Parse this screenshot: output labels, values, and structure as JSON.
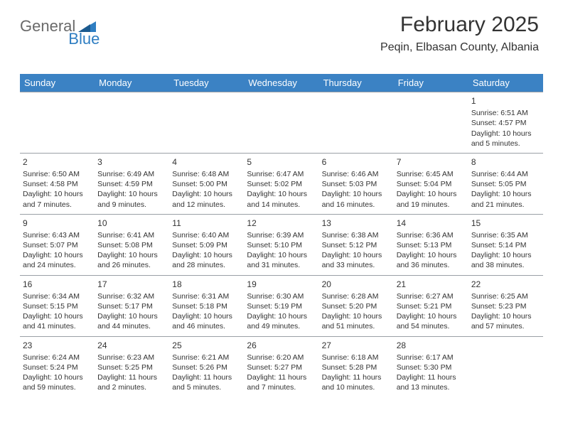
{
  "logo": {
    "word1": "General",
    "word2": "Blue"
  },
  "header": {
    "title": "February 2025",
    "subtitle": "Peqin, Elbasan County, Albania"
  },
  "colors": {
    "header_bg": "#3b82c4",
    "header_text": "#ffffff",
    "divider": "#9aa0a6",
    "logo_gray": "#6a6a6a",
    "logo_blue": "#2f7ec2",
    "text": "#333333",
    "background": "#ffffff"
  },
  "day_names": [
    "Sunday",
    "Monday",
    "Tuesday",
    "Wednesday",
    "Thursday",
    "Friday",
    "Saturday"
  ],
  "weeks": [
    [
      {
        "day": "",
        "sunrise": "",
        "sunset": "",
        "daylight": ""
      },
      {
        "day": "",
        "sunrise": "",
        "sunset": "",
        "daylight": ""
      },
      {
        "day": "",
        "sunrise": "",
        "sunset": "",
        "daylight": ""
      },
      {
        "day": "",
        "sunrise": "",
        "sunset": "",
        "daylight": ""
      },
      {
        "day": "",
        "sunrise": "",
        "sunset": "",
        "daylight": ""
      },
      {
        "day": "",
        "sunrise": "",
        "sunset": "",
        "daylight": ""
      },
      {
        "day": "1",
        "sunrise": "Sunrise: 6:51 AM",
        "sunset": "Sunset: 4:57 PM",
        "daylight": "Daylight: 10 hours and 5 minutes."
      }
    ],
    [
      {
        "day": "2",
        "sunrise": "Sunrise: 6:50 AM",
        "sunset": "Sunset: 4:58 PM",
        "daylight": "Daylight: 10 hours and 7 minutes."
      },
      {
        "day": "3",
        "sunrise": "Sunrise: 6:49 AM",
        "sunset": "Sunset: 4:59 PM",
        "daylight": "Daylight: 10 hours and 9 minutes."
      },
      {
        "day": "4",
        "sunrise": "Sunrise: 6:48 AM",
        "sunset": "Sunset: 5:00 PM",
        "daylight": "Daylight: 10 hours and 12 minutes."
      },
      {
        "day": "5",
        "sunrise": "Sunrise: 6:47 AM",
        "sunset": "Sunset: 5:02 PM",
        "daylight": "Daylight: 10 hours and 14 minutes."
      },
      {
        "day": "6",
        "sunrise": "Sunrise: 6:46 AM",
        "sunset": "Sunset: 5:03 PM",
        "daylight": "Daylight: 10 hours and 16 minutes."
      },
      {
        "day": "7",
        "sunrise": "Sunrise: 6:45 AM",
        "sunset": "Sunset: 5:04 PM",
        "daylight": "Daylight: 10 hours and 19 minutes."
      },
      {
        "day": "8",
        "sunrise": "Sunrise: 6:44 AM",
        "sunset": "Sunset: 5:05 PM",
        "daylight": "Daylight: 10 hours and 21 minutes."
      }
    ],
    [
      {
        "day": "9",
        "sunrise": "Sunrise: 6:43 AM",
        "sunset": "Sunset: 5:07 PM",
        "daylight": "Daylight: 10 hours and 24 minutes."
      },
      {
        "day": "10",
        "sunrise": "Sunrise: 6:41 AM",
        "sunset": "Sunset: 5:08 PM",
        "daylight": "Daylight: 10 hours and 26 minutes."
      },
      {
        "day": "11",
        "sunrise": "Sunrise: 6:40 AM",
        "sunset": "Sunset: 5:09 PM",
        "daylight": "Daylight: 10 hours and 28 minutes."
      },
      {
        "day": "12",
        "sunrise": "Sunrise: 6:39 AM",
        "sunset": "Sunset: 5:10 PM",
        "daylight": "Daylight: 10 hours and 31 minutes."
      },
      {
        "day": "13",
        "sunrise": "Sunrise: 6:38 AM",
        "sunset": "Sunset: 5:12 PM",
        "daylight": "Daylight: 10 hours and 33 minutes."
      },
      {
        "day": "14",
        "sunrise": "Sunrise: 6:36 AM",
        "sunset": "Sunset: 5:13 PM",
        "daylight": "Daylight: 10 hours and 36 minutes."
      },
      {
        "day": "15",
        "sunrise": "Sunrise: 6:35 AM",
        "sunset": "Sunset: 5:14 PM",
        "daylight": "Daylight: 10 hours and 38 minutes."
      }
    ],
    [
      {
        "day": "16",
        "sunrise": "Sunrise: 6:34 AM",
        "sunset": "Sunset: 5:15 PM",
        "daylight": "Daylight: 10 hours and 41 minutes."
      },
      {
        "day": "17",
        "sunrise": "Sunrise: 6:32 AM",
        "sunset": "Sunset: 5:17 PM",
        "daylight": "Daylight: 10 hours and 44 minutes."
      },
      {
        "day": "18",
        "sunrise": "Sunrise: 6:31 AM",
        "sunset": "Sunset: 5:18 PM",
        "daylight": "Daylight: 10 hours and 46 minutes."
      },
      {
        "day": "19",
        "sunrise": "Sunrise: 6:30 AM",
        "sunset": "Sunset: 5:19 PM",
        "daylight": "Daylight: 10 hours and 49 minutes."
      },
      {
        "day": "20",
        "sunrise": "Sunrise: 6:28 AM",
        "sunset": "Sunset: 5:20 PM",
        "daylight": "Daylight: 10 hours and 51 minutes."
      },
      {
        "day": "21",
        "sunrise": "Sunrise: 6:27 AM",
        "sunset": "Sunset: 5:21 PM",
        "daylight": "Daylight: 10 hours and 54 minutes."
      },
      {
        "day": "22",
        "sunrise": "Sunrise: 6:25 AM",
        "sunset": "Sunset: 5:23 PM",
        "daylight": "Daylight: 10 hours and 57 minutes."
      }
    ],
    [
      {
        "day": "23",
        "sunrise": "Sunrise: 6:24 AM",
        "sunset": "Sunset: 5:24 PM",
        "daylight": "Daylight: 10 hours and 59 minutes."
      },
      {
        "day": "24",
        "sunrise": "Sunrise: 6:23 AM",
        "sunset": "Sunset: 5:25 PM",
        "daylight": "Daylight: 11 hours and 2 minutes."
      },
      {
        "day": "25",
        "sunrise": "Sunrise: 6:21 AM",
        "sunset": "Sunset: 5:26 PM",
        "daylight": "Daylight: 11 hours and 5 minutes."
      },
      {
        "day": "26",
        "sunrise": "Sunrise: 6:20 AM",
        "sunset": "Sunset: 5:27 PM",
        "daylight": "Daylight: 11 hours and 7 minutes."
      },
      {
        "day": "27",
        "sunrise": "Sunrise: 6:18 AM",
        "sunset": "Sunset: 5:28 PM",
        "daylight": "Daylight: 11 hours and 10 minutes."
      },
      {
        "day": "28",
        "sunrise": "Sunrise: 6:17 AM",
        "sunset": "Sunset: 5:30 PM",
        "daylight": "Daylight: 11 hours and 13 minutes."
      },
      {
        "day": "",
        "sunrise": "",
        "sunset": "",
        "daylight": ""
      }
    ]
  ]
}
